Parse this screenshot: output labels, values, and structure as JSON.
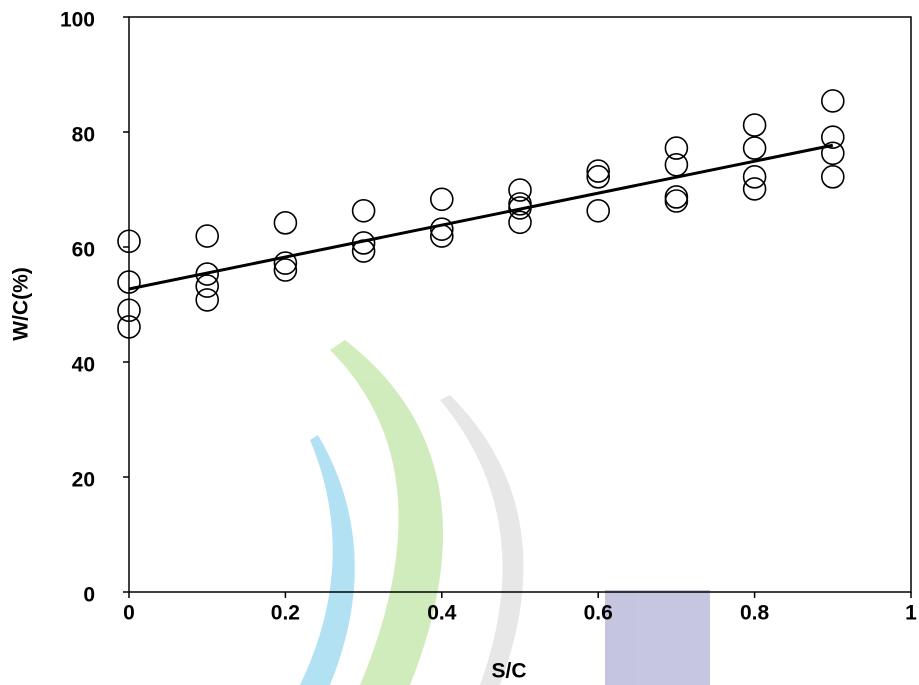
{
  "chart_data": {
    "type": "scatter",
    "xlabel": "S/C",
    "ylabel": "W/C(%)",
    "xlim": [
      0,
      1
    ],
    "ylim": [
      0,
      100
    ],
    "xticks": [
      0,
      0.2,
      0.4,
      0.6,
      0.8,
      1
    ],
    "yticks": [
      0,
      20,
      40,
      60,
      80,
      100
    ],
    "series": [
      {
        "type": "scatter",
        "color": "#000000",
        "x": [
          0,
          0,
          0,
          0,
          0.1,
          0.1,
          0.1,
          0.1,
          0.2,
          0.2,
          0.2,
          0.3,
          0.3,
          0.3,
          0.4,
          0.4,
          0.4,
          0.5,
          0.5,
          0.5,
          0.5,
          0.6,
          0.6,
          0.6,
          0.7,
          0.7,
          0.7,
          0.7,
          0.8,
          0.8,
          0.8,
          0.8,
          0.9,
          0.9,
          0.9,
          0.9
        ],
        "values": [
          61.0,
          53.9,
          49.0,
          46.1,
          61.9,
          55.3,
          53.2,
          50.8,
          64.2,
          57.2,
          56.0,
          66.3,
          60.7,
          59.3,
          68.3,
          63.1,
          61.9,
          69.9,
          67.5,
          66.8,
          64.3,
          73.2,
          72.2,
          66.3,
          77.2,
          74.3,
          68.7,
          68.0,
          81.2,
          77.2,
          72.2,
          70.1,
          85.4,
          79.1,
          76.3,
          72.2
        ]
      },
      {
        "type": "line",
        "color": "#000000",
        "x": [
          0,
          0.9
        ],
        "values": [
          52.7,
          77.7
        ]
      }
    ]
  }
}
